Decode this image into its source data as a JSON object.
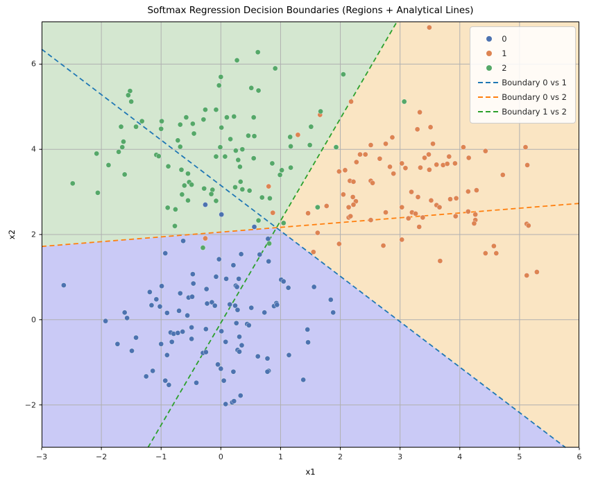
{
  "figure": {
    "title": "Softmax Regression Decision Boundaries (Regions + Analytical Lines)",
    "xlabel": "x1",
    "ylabel": "x2"
  },
  "chart_data": {
    "type": "scatter",
    "title": "Softmax Regression Decision Boundaries (Regions + Analytical Lines)",
    "xlabel": "x1",
    "ylabel": "x2",
    "xlim": [
      -3,
      6
    ],
    "ylim": [
      -3,
      7
    ],
    "xticks": [
      -3,
      -2,
      -1,
      0,
      1,
      2,
      3,
      4,
      5,
      6
    ],
    "yticks": [
      -2,
      0,
      2,
      4,
      6
    ],
    "grid": true,
    "grid_color": "#b0b0b0",
    "spine_color": "#000000",
    "legend": {
      "position": "upper right",
      "entries": [
        {
          "label": "0",
          "type": "marker",
          "color": "#4C72B0"
        },
        {
          "label": "1",
          "type": "marker",
          "color": "#DD8452"
        },
        {
          "label": "2",
          "type": "marker",
          "color": "#55A868"
        },
        {
          "label": "Boundary 0 vs 1",
          "type": "dashed-line",
          "color": "#1F77B4"
        },
        {
          "label": "Boundary 0 vs 2",
          "type": "dashed-line",
          "color": "#FF7F0E"
        },
        {
          "label": "Boundary 1 vs 2",
          "type": "dashed-line",
          "color": "#2CA02C"
        }
      ]
    },
    "regions": [
      {
        "class": "0",
        "color": "#cacaf6",
        "polygon": [
          [
            -3,
            1.72
          ],
          [
            0.93,
            2.16
          ],
          [
            5.77,
            -3
          ],
          [
            -3,
            -3
          ]
        ]
      },
      {
        "class": "1",
        "color": "#fae5c3",
        "polygon": [
          [
            0.93,
            2.16
          ],
          [
            2.95,
            7
          ],
          [
            6,
            7
          ],
          [
            6,
            -3
          ],
          [
            5.77,
            -3
          ]
        ]
      },
      {
        "class": "2",
        "color": "#d4e7d0",
        "polygon": [
          [
            -3,
            1.72
          ],
          [
            0.93,
            2.16
          ],
          [
            2.95,
            7
          ],
          [
            -3,
            7
          ]
        ]
      }
    ],
    "boundary_lines": [
      {
        "name": "Boundary 0 vs 1",
        "color": "#1F77B4",
        "from": [
          -3,
          6.35
        ],
        "to": [
          5.77,
          -3
        ]
      },
      {
        "name": "Boundary 0 vs 2",
        "color": "#FF7F0E",
        "from": [
          -3,
          1.72
        ],
        "to": [
          6,
          2.73
        ]
      },
      {
        "name": "Boundary 1 vs 2",
        "color": "#2CA02C",
        "from": [
          -1.22,
          -3
        ],
        "to": [
          2.95,
          7
        ]
      }
    ],
    "series": [
      {
        "name": "0",
        "color": "#4C72B0",
        "points": [
          [
            -2.63,
            0.81
          ],
          [
            -0.63,
            1.85
          ],
          [
            -0.93,
            1.56
          ],
          [
            -0.47,
            1.07
          ],
          [
            -0.46,
            0.85
          ],
          [
            -0.08,
            1.01
          ],
          [
            -0.03,
            1.42
          ],
          [
            -0.24,
            0.72
          ],
          [
            -0.99,
            0.79
          ],
          [
            -1.19,
            0.65
          ],
          [
            -1.08,
            0.48
          ],
          [
            -0.68,
            0.62
          ],
          [
            -0.54,
            0.52
          ],
          [
            -0.48,
            0.54
          ],
          [
            -1.16,
            0.34
          ],
          [
            -1.02,
            0.31
          ],
          [
            -0.9,
            0.16
          ],
          [
            -0.7,
            0.21
          ],
          [
            -0.56,
            0.1
          ],
          [
            -0.23,
            0.38
          ],
          [
            -0.15,
            0.41
          ],
          [
            -0.1,
            0.33
          ],
          [
            -1.61,
            0.17
          ],
          [
            -1.57,
            0.04
          ],
          [
            -1.93,
            -0.03
          ],
          [
            -0.84,
            -0.3
          ],
          [
            -0.79,
            -0.33
          ],
          [
            -0.72,
            -0.31
          ],
          [
            -0.64,
            -0.28
          ],
          [
            -0.49,
            -0.18
          ],
          [
            -0.25,
            -0.22
          ],
          [
            -0.82,
            -0.52
          ],
          [
            -0.49,
            -0.45
          ],
          [
            -1.0,
            -0.57
          ],
          [
            -1.42,
            -0.42
          ],
          [
            -1.73,
            -0.57
          ],
          [
            -1.49,
            -0.73
          ],
          [
            -0.9,
            -0.83
          ],
          [
            -0.3,
            -0.78
          ],
          [
            -0.25,
            -0.76
          ],
          [
            -0.05,
            -1.05
          ],
          [
            0.0,
            -1.15
          ],
          [
            -1.14,
            -1.2
          ],
          [
            -1.25,
            -1.33
          ],
          [
            -0.93,
            -1.43
          ],
          [
            -0.87,
            -1.53
          ],
          [
            -0.41,
            -1.48
          ],
          [
            0.34,
            1.54
          ],
          [
            0.21,
            1.28
          ],
          [
            0.65,
            1.53
          ],
          [
            0.8,
            1.37
          ],
          [
            0.79,
            1.9
          ],
          [
            0.09,
            0.96
          ],
          [
            0.3,
            0.96
          ],
          [
            0.25,
            0.8
          ],
          [
            0.27,
            0.77
          ],
          [
            1.01,
            0.94
          ],
          [
            1.05,
            0.9
          ],
          [
            1.13,
            0.75
          ],
          [
            1.56,
            0.77
          ],
          [
            1.84,
            0.47
          ],
          [
            1.88,
            0.17
          ],
          [
            0.15,
            0.36
          ],
          [
            0.24,
            0.33
          ],
          [
            0.28,
            0.23
          ],
          [
            0.51,
            0.28
          ],
          [
            0.73,
            0.17
          ],
          [
            0.89,
            0.32
          ],
          [
            0.93,
            0.39
          ],
          [
            0.94,
            0.35
          ],
          [
            0.26,
            -0.08
          ],
          [
            0.44,
            -0.1
          ],
          [
            0.47,
            -0.13
          ],
          [
            0.01,
            -0.27
          ],
          [
            0.31,
            -0.4
          ],
          [
            0.08,
            -0.52
          ],
          [
            0.35,
            -0.6
          ],
          [
            0.28,
            -0.71
          ],
          [
            0.31,
            -0.75
          ],
          [
            1.45,
            -0.23
          ],
          [
            1.46,
            -0.53
          ],
          [
            1.14,
            -0.83
          ],
          [
            0.62,
            -0.86
          ],
          [
            0.78,
            -0.91
          ],
          [
            0.21,
            -1.22
          ],
          [
            0.8,
            -1.2
          ],
          [
            0.78,
            -1.22
          ],
          [
            0.05,
            -1.43
          ],
          [
            1.38,
            -1.41
          ],
          [
            0.33,
            -1.78
          ],
          [
            0.19,
            -1.94
          ],
          [
            0.22,
            -1.91
          ],
          [
            0.08,
            -1.98
          ],
          [
            -0.26,
            2.7
          ],
          [
            0.01,
            2.47
          ],
          [
            0.56,
            2.18
          ]
        ]
      },
      {
        "name": "1",
        "color": "#DD8452",
        "points": [
          [
            1.66,
            4.81
          ],
          [
            1.29,
            4.34
          ],
          [
            2.18,
            5.12
          ],
          [
            2.51,
            4.1
          ],
          [
            2.76,
            4.13
          ],
          [
            2.87,
            4.28
          ],
          [
            2.33,
            3.88
          ],
          [
            2.42,
            3.88
          ],
          [
            2.27,
            3.7
          ],
          [
            2.66,
            3.78
          ],
          [
            2.83,
            3.59
          ],
          [
            2.89,
            3.43
          ],
          [
            1.98,
            3.48
          ],
          [
            2.08,
            3.51
          ],
          [
            2.16,
            3.26
          ],
          [
            2.22,
            3.24
          ],
          [
            2.51,
            3.26
          ],
          [
            2.54,
            3.21
          ],
          [
            2.05,
            2.94
          ],
          [
            2.21,
            2.88
          ],
          [
            2.26,
            2.78
          ],
          [
            2.22,
            2.7
          ],
          [
            2.14,
            2.64
          ],
          [
            1.77,
            2.67
          ],
          [
            1.46,
            2.5
          ],
          [
            2.14,
            2.4
          ],
          [
            2.17,
            2.43
          ],
          [
            2.51,
            2.34
          ],
          [
            2.76,
            2.52
          ],
          [
            0.87,
            2.51
          ],
          [
            1.62,
            2.04
          ],
          [
            0.8,
            3.13
          ],
          [
            3.49,
            6.86
          ],
          [
            3.33,
            4.87
          ],
          [
            3.29,
            4.47
          ],
          [
            3.51,
            4.52
          ],
          [
            3.55,
            4.13
          ],
          [
            4.06,
            4.05
          ],
          [
            5.1,
            4.05
          ],
          [
            4.43,
            3.96
          ],
          [
            4.15,
            3.8
          ],
          [
            3.41,
            3.8
          ],
          [
            3.48,
            3.88
          ],
          [
            3.82,
            3.83
          ],
          [
            3.03,
            3.67
          ],
          [
            3.09,
            3.56
          ],
          [
            3.34,
            3.57
          ],
          [
            3.49,
            3.52
          ],
          [
            3.61,
            3.64
          ],
          [
            3.72,
            3.63
          ],
          [
            3.79,
            3.66
          ],
          [
            3.92,
            3.67
          ],
          [
            5.13,
            3.63
          ],
          [
            4.72,
            3.4
          ],
          [
            3.19,
            3.0
          ],
          [
            3.3,
            2.88
          ],
          [
            3.52,
            2.8
          ],
          [
            4.14,
            3.01
          ],
          [
            4.28,
            3.04
          ],
          [
            3.84,
            2.83
          ],
          [
            3.94,
            2.85
          ],
          [
            3.61,
            2.69
          ],
          [
            3.66,
            2.64
          ],
          [
            3.03,
            2.64
          ],
          [
            3.2,
            2.52
          ],
          [
            3.26,
            2.49
          ],
          [
            3.38,
            2.4
          ],
          [
            3.14,
            2.38
          ],
          [
            3.32,
            2.18
          ],
          [
            4.14,
            2.54
          ],
          [
            3.93,
            2.43
          ],
          [
            4.26,
            2.47
          ],
          [
            4.26,
            2.34
          ],
          [
            4.24,
            2.26
          ],
          [
            5.12,
            2.25
          ],
          [
            5.15,
            2.21
          ],
          [
            1.55,
            1.59
          ],
          [
            1.98,
            1.78
          ],
          [
            2.72,
            1.74
          ],
          [
            3.03,
            1.88
          ],
          [
            3.67,
            1.38
          ],
          [
            4.43,
            1.56
          ],
          [
            4.57,
            1.73
          ],
          [
            4.61,
            1.56
          ],
          [
            5.12,
            1.04
          ],
          [
            5.29,
            1.12
          ],
          [
            -0.26,
            1.91
          ]
        ]
      },
      {
        "name": "2",
        "color": "#55A868",
        "points": [
          [
            -1.52,
            5.37
          ],
          [
            -1.55,
            5.27
          ],
          [
            -1.5,
            5.12
          ],
          [
            -1.67,
            4.53
          ],
          [
            -1.42,
            4.53
          ],
          [
            -1.32,
            4.66
          ],
          [
            -0.99,
            4.66
          ],
          [
            -1.0,
            4.48
          ],
          [
            -0.58,
            4.75
          ],
          [
            -0.68,
            4.58
          ],
          [
            -0.47,
            4.6
          ],
          [
            -0.26,
            4.93
          ],
          [
            -0.08,
            4.93
          ],
          [
            -0.29,
            4.7
          ],
          [
            -0.45,
            4.37
          ],
          [
            -0.03,
            5.5
          ],
          [
            0.0,
            5.7
          ],
          [
            -1.63,
            4.18
          ],
          [
            -1.65,
            4.05
          ],
          [
            -1.71,
            3.94
          ],
          [
            -2.08,
            3.9
          ],
          [
            -0.72,
            4.21
          ],
          [
            -0.68,
            4.06
          ],
          [
            -0.01,
            4.05
          ],
          [
            -1.08,
            3.87
          ],
          [
            -1.04,
            3.84
          ],
          [
            -0.08,
            3.83
          ],
          [
            -1.88,
            3.63
          ],
          [
            -0.88,
            3.6
          ],
          [
            -0.66,
            3.52
          ],
          [
            -0.55,
            3.43
          ],
          [
            -1.61,
            3.41
          ],
          [
            -2.48,
            3.2
          ],
          [
            -0.53,
            3.23
          ],
          [
            -0.61,
            3.15
          ],
          [
            -0.49,
            3.17
          ],
          [
            -2.06,
            2.98
          ],
          [
            -0.28,
            3.08
          ],
          [
            -0.14,
            3.05
          ],
          [
            -0.16,
            2.95
          ],
          [
            -0.65,
            2.94
          ],
          [
            -0.55,
            2.8
          ],
          [
            -0.08,
            2.79
          ],
          [
            -0.89,
            2.63
          ],
          [
            -0.76,
            2.59
          ],
          [
            -0.77,
            2.2
          ],
          [
            0.62,
            6.28
          ],
          [
            0.27,
            6.09
          ],
          [
            0.91,
            5.9
          ],
          [
            2.05,
            5.76
          ],
          [
            0.51,
            5.44
          ],
          [
            0.63,
            5.38
          ],
          [
            1.67,
            4.89
          ],
          [
            0.1,
            4.75
          ],
          [
            0.22,
            4.77
          ],
          [
            0.55,
            4.75
          ],
          [
            1.51,
            4.53
          ],
          [
            0.01,
            4.51
          ],
          [
            0.16,
            4.24
          ],
          [
            0.46,
            4.32
          ],
          [
            0.56,
            4.31
          ],
          [
            1.16,
            4.29
          ],
          [
            1.17,
            4.07
          ],
          [
            1.49,
            4.1
          ],
          [
            1.93,
            4.05
          ],
          [
            0.25,
            3.97
          ],
          [
            0.36,
            4.0
          ],
          [
            0.07,
            3.83
          ],
          [
            0.29,
            3.75
          ],
          [
            0.32,
            3.59
          ],
          [
            0.55,
            3.79
          ],
          [
            0.86,
            3.67
          ],
          [
            1.02,
            3.51
          ],
          [
            0.99,
            3.4
          ],
          [
            1.17,
            3.57
          ],
          [
            0.33,
            3.24
          ],
          [
            0.24,
            3.11
          ],
          [
            0.36,
            3.06
          ],
          [
            0.48,
            3.03
          ],
          [
            0.69,
            2.87
          ],
          [
            0.82,
            2.85
          ],
          [
            1.62,
            2.64
          ],
          [
            0.63,
            2.33
          ],
          [
            1.05,
            2.27
          ],
          [
            3.07,
            5.12
          ],
          [
            -0.3,
            1.69
          ],
          [
            0.81,
            1.79
          ]
        ]
      }
    ]
  }
}
